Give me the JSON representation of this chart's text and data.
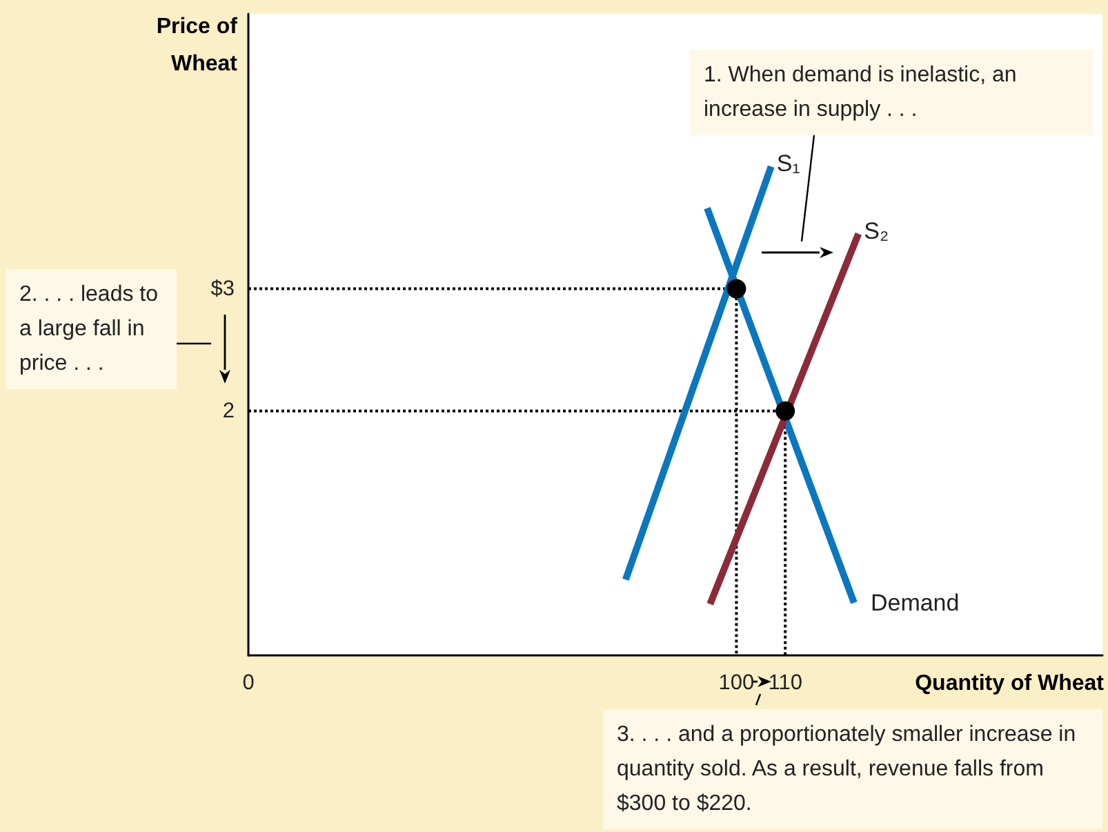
{
  "chart_data": {
    "type": "line",
    "xlabel": "Quantity of Wheat",
    "ylabel": "Price of Wheat",
    "xlim": [
      0,
      175
    ],
    "ylim": [
      0,
      5.25
    ],
    "xticks": [
      0,
      100,
      110
    ],
    "yticks": [
      {
        "value": 3,
        "label": "$3"
      },
      2
    ],
    "grid": false,
    "legend": false,
    "series": [
      {
        "name": "S₁",
        "color": "#0a77bf",
        "x": [
          77.3,
          107.1
        ],
        "values": [
          0.62,
          4.0
        ]
      },
      {
        "name": "Demand",
        "color": "#0a77bf",
        "x": [
          94.0,
          124.1
        ],
        "values": [
          3.66,
          0.43
        ]
      },
      {
        "name": "S₂",
        "color": "#8b2a3a",
        "x": [
          94.6,
          125.0
        ],
        "values": [
          0.42,
          3.45
        ]
      },
      {
        "color": "#000000",
        "x": [
          0,
          100,
          100
        ],
        "values": [
          3,
          3,
          0
        ],
        "line_style": "dotted"
      },
      {
        "color": "#000000",
        "x": [
          0,
          110,
          110
        ],
        "values": [
          2,
          2,
          0
        ],
        "line_style": "dotted"
      },
      {
        "type": "scatter",
        "color": "#000000",
        "x": [
          100,
          110
        ],
        "values": [
          3,
          2
        ],
        "marker": "circle"
      }
    ],
    "annotations": [
      "1. When demand is inelastic, an increase in supply . . .",
      "2. . . . leads to a large fall in price . . .",
      "3.  . . . and a proportionately smaller increase in quantity sold. As a result, revenue falls from $300 to $220."
    ]
  }
}
